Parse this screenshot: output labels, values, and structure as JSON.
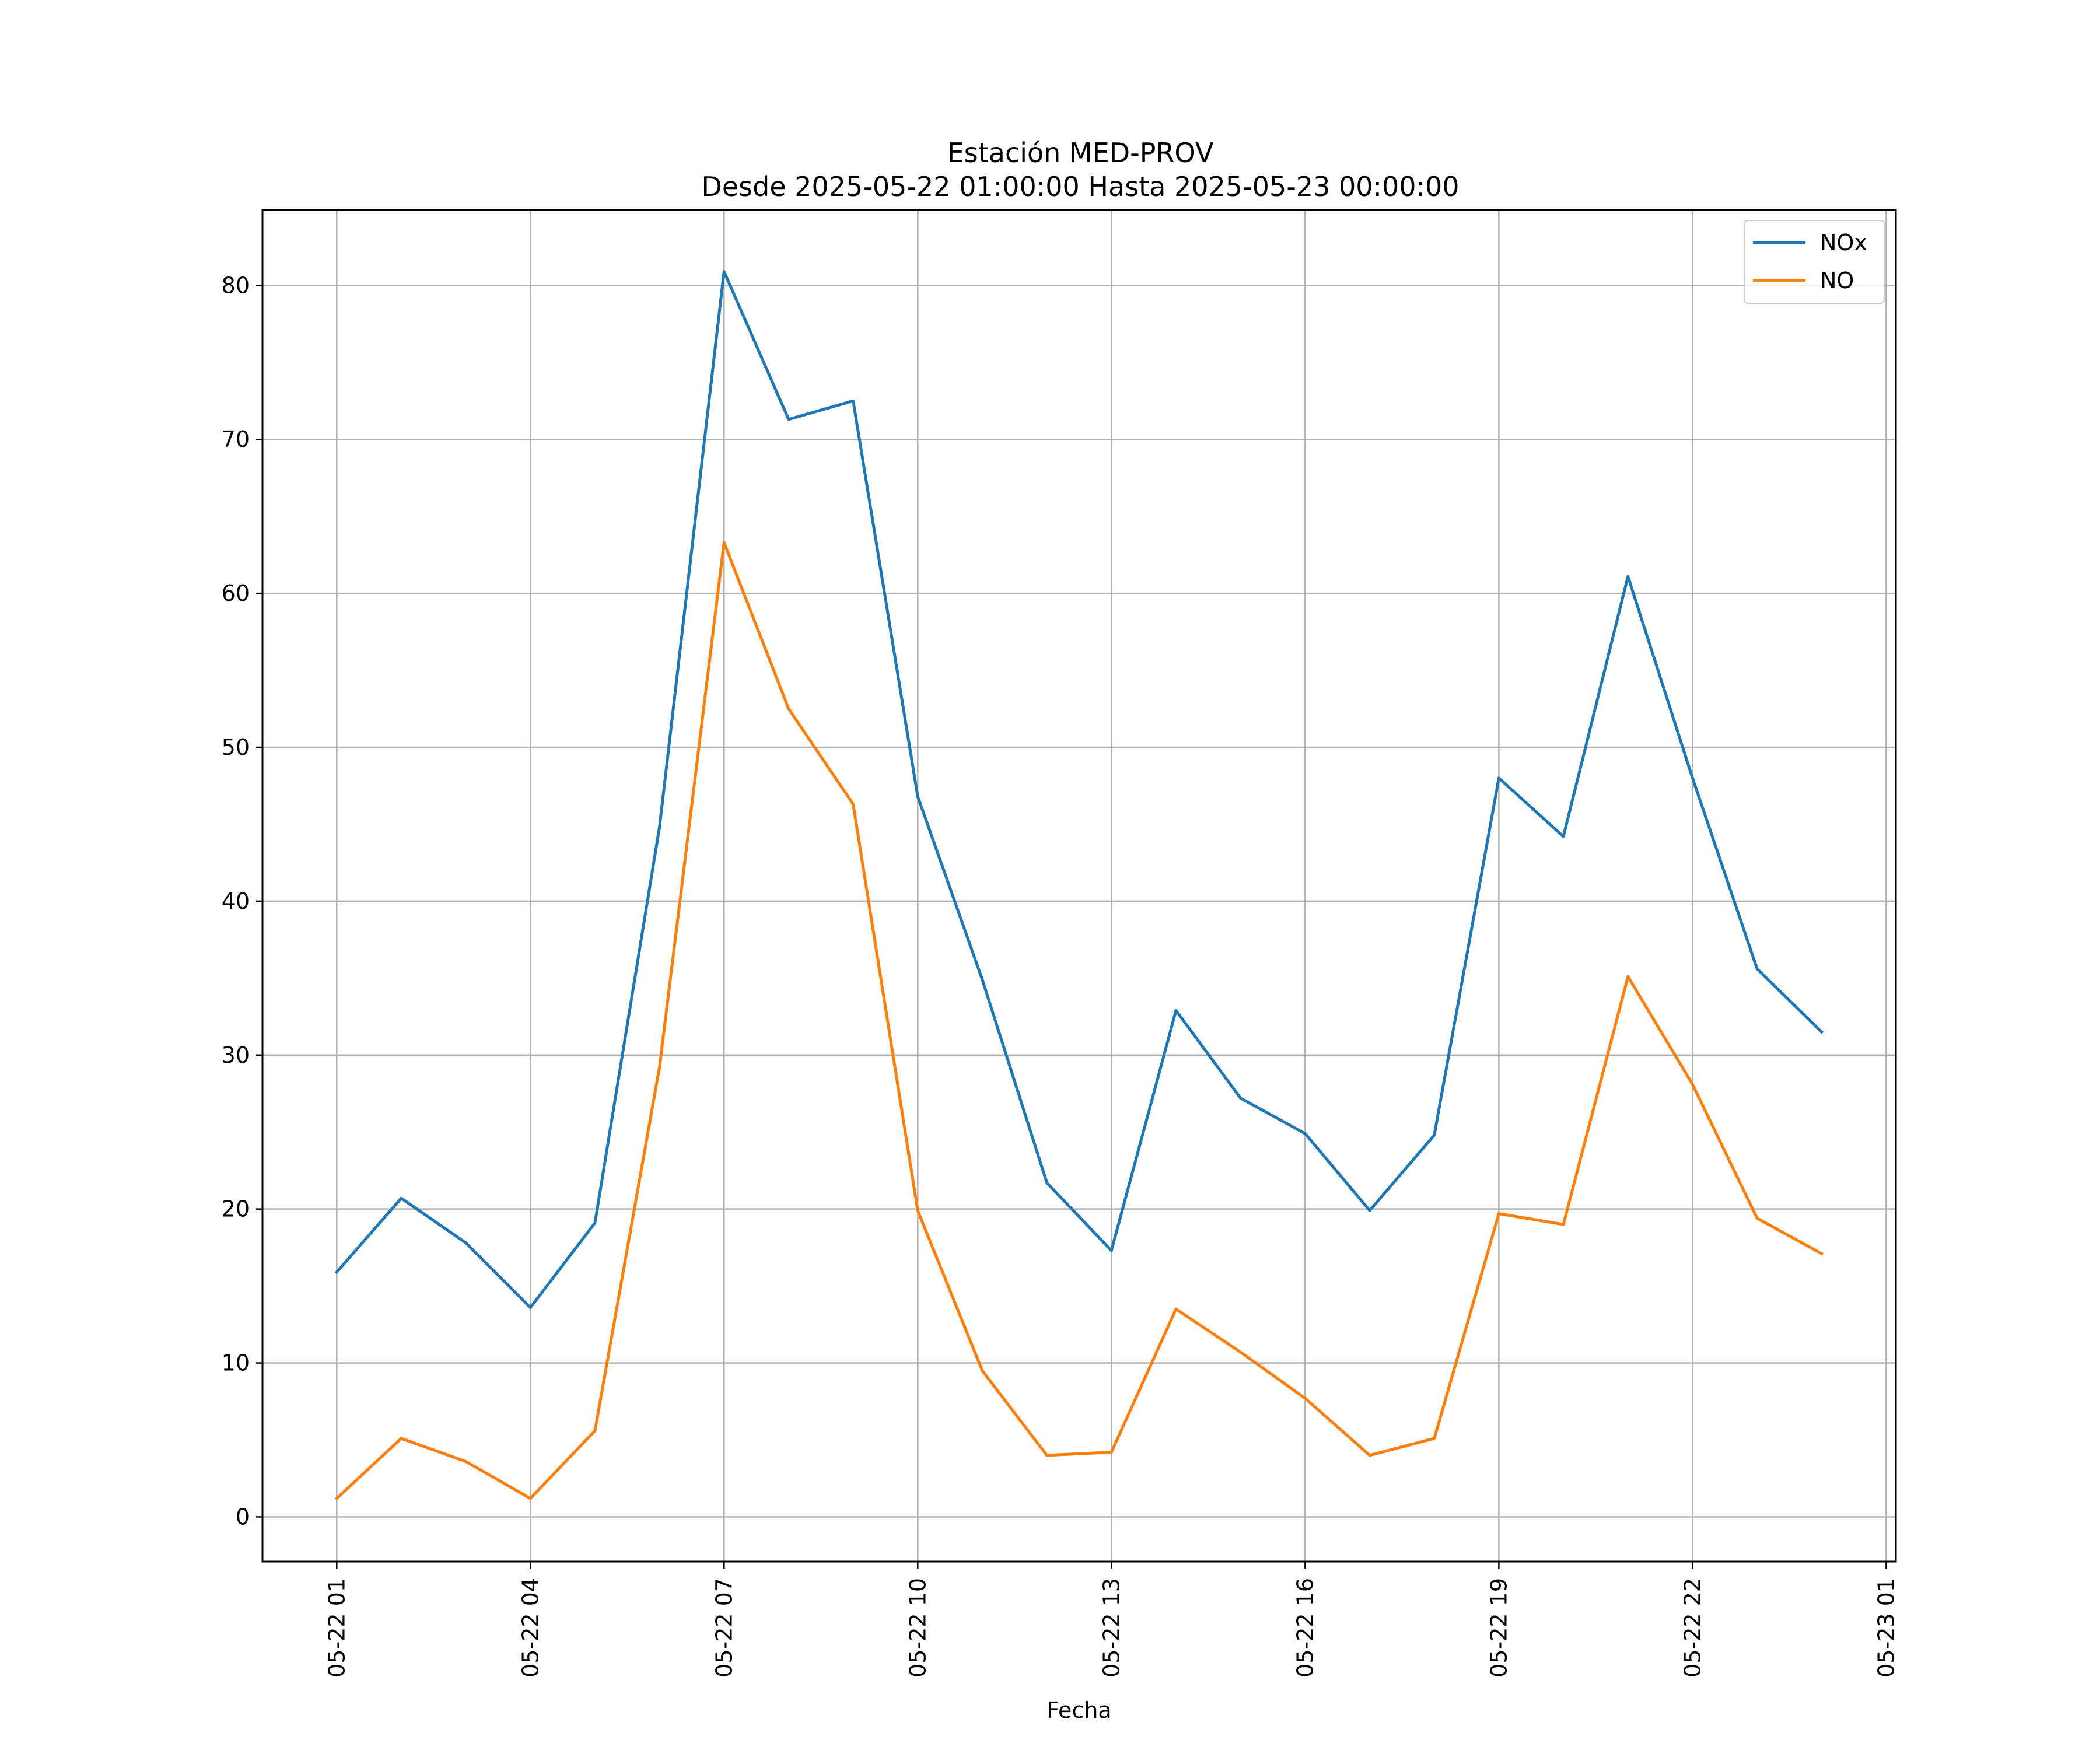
{
  "chart_data": {
    "type": "line",
    "title": "Estación MED-PROV",
    "subtitle": "Desde 2025-05-22 01:00:00 Hasta 2025-05-23 00:00:00",
    "xlabel": "Fecha",
    "ylabel": "",
    "x": [
      "2025-05-22 01:00",
      "2025-05-22 02:00",
      "2025-05-22 03:00",
      "2025-05-22 04:00",
      "2025-05-22 05:00",
      "2025-05-22 06:00",
      "2025-05-22 07:00",
      "2025-05-22 08:00",
      "2025-05-22 09:00",
      "2025-05-22 10:00",
      "2025-05-22 11:00",
      "2025-05-22 12:00",
      "2025-05-22 13:00",
      "2025-05-22 14:00",
      "2025-05-22 15:00",
      "2025-05-22 16:00",
      "2025-05-22 17:00",
      "2025-05-22 18:00",
      "2025-05-22 19:00",
      "2025-05-22 20:00",
      "2025-05-22 21:00",
      "2025-05-22 22:00",
      "2025-05-22 23:00",
      "2025-05-23 00:00"
    ],
    "series": [
      {
        "name": "NOx",
        "color": "#1f77b4",
        "values": [
          15.9,
          20.7,
          17.8,
          13.6,
          19.1,
          44.8,
          80.9,
          71.3,
          72.5,
          46.8,
          34.9,
          21.7,
          17.3,
          32.9,
          27.2,
          24.9,
          19.9,
          24.8,
          48.0,
          44.2,
          61.1,
          48.0,
          35.6,
          31.5
        ]
      },
      {
        "name": "NO",
        "color": "#ff7f0e",
        "values": [
          1.2,
          5.1,
          3.6,
          1.2,
          5.6,
          29.2,
          63.3,
          52.5,
          46.3,
          19.9,
          9.5,
          4.0,
          4.2,
          13.5,
          10.7,
          7.7,
          4.0,
          5.1,
          19.7,
          19.0,
          35.1,
          28.1,
          19.4,
          17.1
        ]
      }
    ],
    "xticks": [
      "05-22 01",
      "05-22 04",
      "05-22 07",
      "05-22 10",
      "05-22 13",
      "05-22 16",
      "05-22 19",
      "05-22 22",
      "05-23 01"
    ],
    "xticks_hours": [
      0,
      3,
      6,
      9,
      12,
      15,
      18,
      21,
      24
    ],
    "xlim_hours": [
      -1.15,
      24.15
    ],
    "yticks": [
      0,
      10,
      20,
      30,
      40,
      50,
      60,
      70,
      80
    ],
    "ylim": [
      -2.9,
      84.9
    ],
    "grid": true,
    "legend_position": "top-right"
  }
}
